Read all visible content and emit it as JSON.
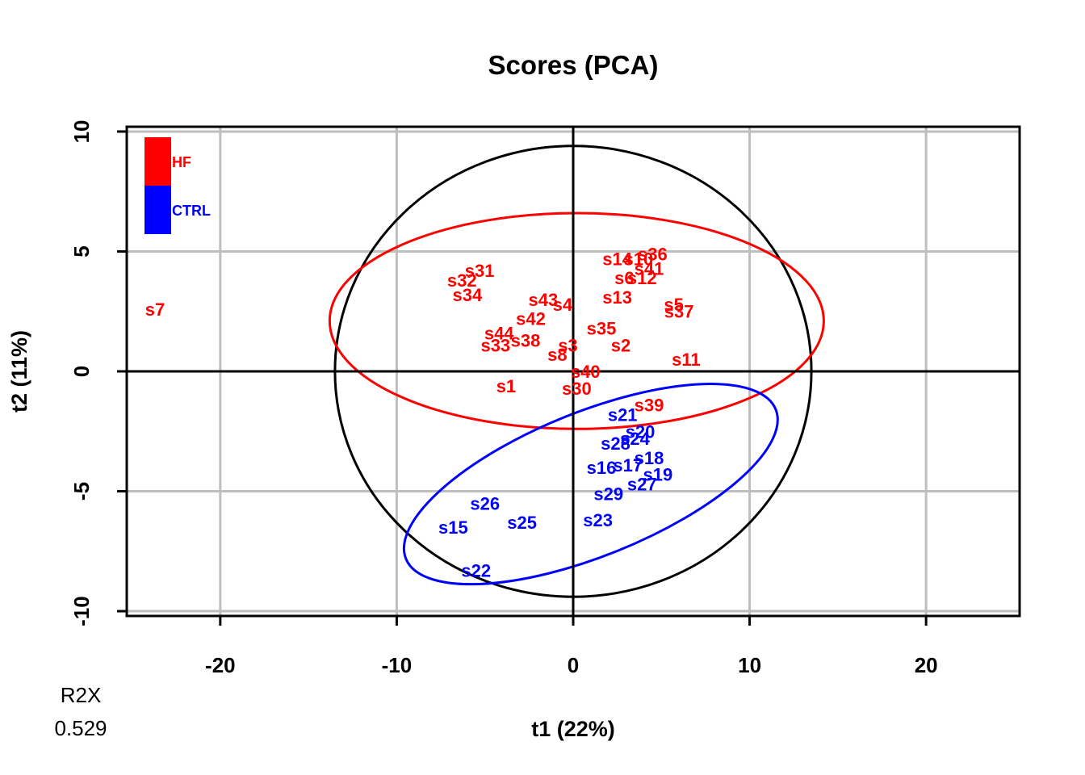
{
  "chart_data": {
    "type": "scatter",
    "title": "Scores (PCA)",
    "xlabel": "t1 (22%)",
    "ylabel": "t2 (11%)",
    "xlim": [
      -25.3,
      25.3
    ],
    "ylim": [
      -10.2,
      10.2
    ],
    "xticks": [
      -20,
      -10,
      0,
      10,
      20
    ],
    "yticks": [
      -10,
      -5,
      0,
      5,
      10
    ],
    "grid": true,
    "legend_position": "top-left",
    "r2x_label": "R2X",
    "r2x_value": "0.529",
    "groups": [
      {
        "name": "HF",
        "color": "#ff0000"
      },
      {
        "name": "CTRL",
        "color": "#0000ff"
      }
    ],
    "points": [
      {
        "label": "s7",
        "group": "HF",
        "x": -23.7,
        "y": 2.6
      },
      {
        "label": "s31",
        "group": "HF",
        "x": -5.3,
        "y": 4.2
      },
      {
        "label": "s32",
        "group": "HF",
        "x": -6.3,
        "y": 3.8
      },
      {
        "label": "s34",
        "group": "HF",
        "x": -6.0,
        "y": 3.2
      },
      {
        "label": "s43",
        "group": "HF",
        "x": -1.7,
        "y": 3.0
      },
      {
        "label": "s4",
        "group": "HF",
        "x": -0.6,
        "y": 2.8
      },
      {
        "label": "s42",
        "group": "HF",
        "x": -2.4,
        "y": 2.2
      },
      {
        "label": "s44",
        "group": "HF",
        "x": -4.2,
        "y": 1.6
      },
      {
        "label": "s38",
        "group": "HF",
        "x": -2.7,
        "y": 1.3
      },
      {
        "label": "s33",
        "group": "HF",
        "x": -4.4,
        "y": 1.1
      },
      {
        "label": "s8",
        "group": "HF",
        "x": -0.9,
        "y": 0.7
      },
      {
        "label": "s3",
        "group": "HF",
        "x": -0.3,
        "y": 1.1
      },
      {
        "label": "s14",
        "group": "HF",
        "x": 2.5,
        "y": 4.7
      },
      {
        "label": "s10",
        "group": "HF",
        "x": 3.7,
        "y": 4.7
      },
      {
        "label": "s36",
        "group": "HF",
        "x": 4.5,
        "y": 4.9
      },
      {
        "label": "s41",
        "group": "HF",
        "x": 4.3,
        "y": 4.3
      },
      {
        "label": "s6",
        "group": "HF",
        "x": 2.9,
        "y": 3.9
      },
      {
        "label": "s12",
        "group": "HF",
        "x": 3.9,
        "y": 3.9
      },
      {
        "label": "s13",
        "group": "HF",
        "x": 2.5,
        "y": 3.1
      },
      {
        "label": "s5",
        "group": "HF",
        "x": 5.7,
        "y": 2.8
      },
      {
        "label": "s37",
        "group": "HF",
        "x": 6.0,
        "y": 2.5
      },
      {
        "label": "s35",
        "group": "HF",
        "x": 1.6,
        "y": 1.8
      },
      {
        "label": "s2",
        "group": "HF",
        "x": 2.7,
        "y": 1.1
      },
      {
        "label": "s11",
        "group": "HF",
        "x": 6.4,
        "y": 0.5
      },
      {
        "label": "s40",
        "group": "HF",
        "x": 0.7,
        "y": 0.0
      },
      {
        "label": "s1",
        "group": "HF",
        "x": -3.8,
        "y": -0.6
      },
      {
        "label": "s30",
        "group": "HF",
        "x": 0.2,
        "y": -0.7
      },
      {
        "label": "s39",
        "group": "HF",
        "x": 4.3,
        "y": -1.4
      },
      {
        "label": "s21",
        "group": "CTRL",
        "x": 2.8,
        "y": -1.8
      },
      {
        "label": "s20",
        "group": "CTRL",
        "x": 3.8,
        "y": -2.5
      },
      {
        "label": "s24",
        "group": "CTRL",
        "x": 3.5,
        "y": -2.8
      },
      {
        "label": "s28",
        "group": "CTRL",
        "x": 2.4,
        "y": -3.0
      },
      {
        "label": "s18",
        "group": "CTRL",
        "x": 4.3,
        "y": -3.6
      },
      {
        "label": "s17",
        "group": "CTRL",
        "x": 3.1,
        "y": -3.9
      },
      {
        "label": "s16",
        "group": "CTRL",
        "x": 1.6,
        "y": -4.0
      },
      {
        "label": "s19",
        "group": "CTRL",
        "x": 4.8,
        "y": -4.3
      },
      {
        "label": "s27",
        "group": "CTRL",
        "x": 3.9,
        "y": -4.7
      },
      {
        "label": "s29",
        "group": "CTRL",
        "x": 2.0,
        "y": -5.1
      },
      {
        "label": "s26",
        "group": "CTRL",
        "x": -5.0,
        "y": -5.5
      },
      {
        "label": "s25",
        "group": "CTRL",
        "x": -2.9,
        "y": -6.3
      },
      {
        "label": "s23",
        "group": "CTRL",
        "x": 1.4,
        "y": -6.2
      },
      {
        "label": "s15",
        "group": "CTRL",
        "x": -6.8,
        "y": -6.5
      },
      {
        "label": "s22",
        "group": "CTRL",
        "x": -5.5,
        "y": -8.3
      }
    ],
    "group_ellipses": [
      {
        "group": "HF",
        "center": [
          0.2,
          2.1
        ],
        "semi_axis_x": 14.0,
        "semi_axis_y": 4.5,
        "angle_deg": 0
      },
      {
        "group": "CTRL",
        "center": [
          1.0,
          -4.7
        ],
        "semi_axis_x": 11.3,
        "semi_axis_y": 3.0,
        "angle_deg": 22
      }
    ],
    "hotelling_ellipse": {
      "semi_axis_x": 13.5,
      "semi_axis_y": 9.4
    }
  }
}
